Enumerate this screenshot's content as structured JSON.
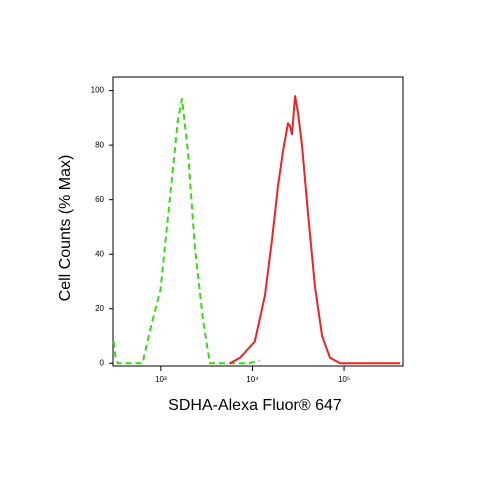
{
  "chart_data": {
    "type": "line",
    "xlabel": "SDHA-Alexa Fluor® 647",
    "ylabel": "Cell Counts (% Max)",
    "xscale": "log",
    "xlim": [
      300,
      440000
    ],
    "ylim": [
      -1,
      105
    ],
    "xticks": [
      {
        "value": 1000,
        "label": "10³"
      },
      {
        "value": 10000,
        "label": "10⁴"
      },
      {
        "value": 100000,
        "label": "10⁵"
      }
    ],
    "yticks": [
      0,
      20,
      40,
      60,
      80,
      100
    ],
    "series": [
      {
        "color": "#33dd11",
        "dash": true,
        "x": [
          305,
          320,
          340,
          630,
          760,
          990,
          1250,
          1530,
          1700,
          1970,
          2360,
          2880,
          3430,
          9000,
          12000
        ],
        "values": [
          8,
          2,
          0,
          0,
          12,
          27,
          60,
          89,
          97,
          78,
          42,
          16,
          0,
          0,
          1
        ]
      },
      {
        "color": "#ee2222",
        "dash": false,
        "x": [
          5680,
          7300,
          10600,
          13700,
          16300,
          19000,
          21600,
          24400,
          25700,
          27000,
          29200,
          31400,
          34700,
          40400,
          48200,
          57500,
          70300,
          90400,
          410000
        ],
        "values": [
          0,
          2,
          8,
          25,
          45,
          65,
          78,
          88,
          87,
          84,
          98,
          92,
          80,
          55,
          28,
          10,
          2,
          0,
          0
        ]
      }
    ]
  }
}
